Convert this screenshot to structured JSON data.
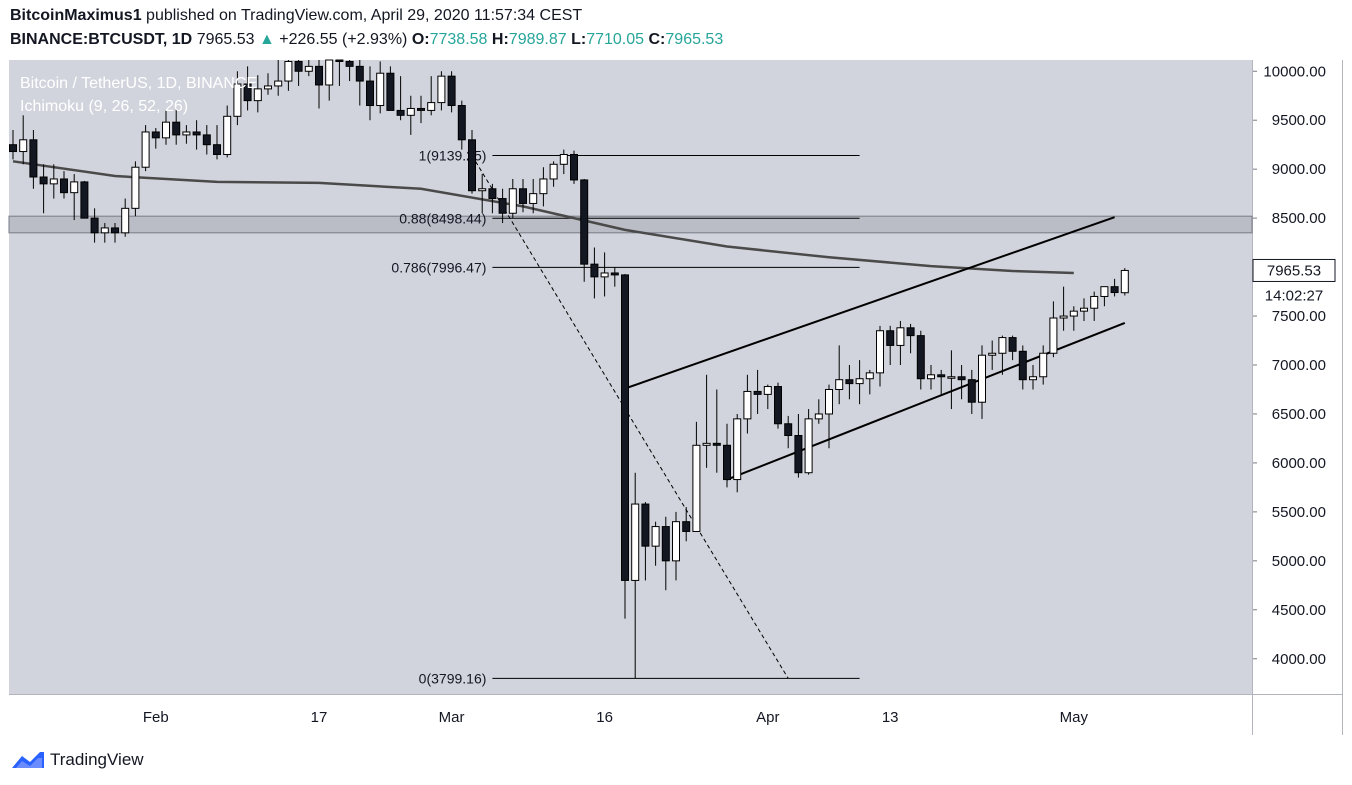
{
  "header": {
    "author": "BitcoinMaximus1",
    "published_text": "published on TradingView.com, April 29, 2020 11:57:34 CEST",
    "symbol": "BINANCE:BTCUSDT, 1D",
    "last": "7965.53",
    "arrow": "▲",
    "change": "+226.55 (+2.93%)",
    "o_label": "O:",
    "o_value": "7738.58",
    "h_label": "H:",
    "h_value": "7989.87",
    "l_label": "L:",
    "l_value": "7710.05",
    "c_label": "C:",
    "c_value": "7965.53"
  },
  "overlay": {
    "title": "Bitcoin / TetherUS, 1D, BINANCE",
    "indicator": "Ichimoku (9, 26, 52, 26)"
  },
  "branding": {
    "name": "TradingView"
  },
  "chart_data": {
    "type": "candlestick",
    "ylim": [
      3640,
      10115
    ],
    "y_ticks": [
      10000,
      9500,
      9000,
      8500,
      8000,
      7500,
      7000,
      6500,
      6000,
      5500,
      5000,
      4500,
      4000
    ],
    "y_tick_labels": [
      "10000.00",
      "9500.00",
      "9000.00",
      "8500.00",
      "8000.00",
      "7500.00",
      "7000.00",
      "6500.00",
      "6000.00",
      "5500.00",
      "5000.00",
      "4500.00",
      "4000.00"
    ],
    "x_ticks": [
      {
        "label": "Feb",
        "day": 14
      },
      {
        "label": "17",
        "day": 30
      },
      {
        "label": "Mar",
        "day": 43
      },
      {
        "label": "16",
        "day": 58
      },
      {
        "label": "Apr",
        "day": 74
      },
      {
        "label": "13",
        "day": 86
      },
      {
        "label": "May",
        "day": 104
      }
    ],
    "last_price": "7965.53",
    "countdown": "14:02:27",
    "candles": [
      [
        9250,
        9400,
        9100,
        9180
      ],
      [
        9180,
        9550,
        9050,
        9300
      ],
      [
        9300,
        9400,
        8800,
        8920
      ],
      [
        8920,
        9050,
        8550,
        8850
      ],
      [
        8850,
        9050,
        8700,
        8900
      ],
      [
        8900,
        8980,
        8700,
        8760
      ],
      [
        8760,
        8950,
        8480,
        8870
      ],
      [
        8870,
        8880,
        8500,
        8500
      ],
      [
        8500,
        8600,
        8250,
        8350
      ],
      [
        8350,
        8450,
        8250,
        8400
      ],
      [
        8400,
        8450,
        8250,
        8350
      ],
      [
        8350,
        8700,
        8310,
        8600
      ],
      [
        8600,
        9080,
        8520,
        9020
      ],
      [
        9020,
        9450,
        8980,
        9380
      ],
      [
        9380,
        9420,
        9210,
        9320
      ],
      [
        9320,
        9600,
        9250,
        9480
      ],
      [
        9480,
        9620,
        9250,
        9350
      ],
      [
        9350,
        9450,
        9260,
        9380
      ],
      [
        9380,
        9500,
        9200,
        9350
      ],
      [
        9350,
        9450,
        9150,
        9250
      ],
      [
        9250,
        9450,
        9100,
        9150
      ],
      [
        9150,
        9650,
        9120,
        9540
      ],
      [
        9540,
        10000,
        9450,
        9870
      ],
      [
        9870,
        10050,
        9600,
        9700
      ],
      [
        9700,
        9960,
        9580,
        9820
      ],
      [
        9820,
        9980,
        9760,
        9850
      ],
      [
        9850,
        10150,
        9750,
        9900
      ],
      [
        9900,
        10250,
        9800,
        10100
      ],
      [
        10100,
        10300,
        9850,
        10000
      ],
      [
        10000,
        10150,
        9950,
        10050
      ],
      [
        10050,
        10400,
        9620,
        9860
      ],
      [
        9860,
        10250,
        9700,
        10150
      ],
      [
        10150,
        10200,
        9850,
        10100
      ],
      [
        10100,
        10150,
        9900,
        10050
      ],
      [
        10050,
        10250,
        9650,
        9900
      ],
      [
        9900,
        10050,
        9500,
        9650
      ],
      [
        9650,
        10100,
        9570,
        9980
      ],
      [
        9980,
        10050,
        9600,
        9600
      ],
      [
        9600,
        9950,
        9500,
        9550
      ],
      [
        9550,
        9750,
        9350,
        9620
      ],
      [
        9620,
        9750,
        9470,
        9600
      ],
      [
        9600,
        9950,
        9550,
        9680
      ],
      [
        9680,
        10000,
        9600,
        9950
      ],
      [
        9950,
        10000,
        9580,
        9650
      ],
      [
        9650,
        9700,
        9200,
        9300
      ],
      [
        9300,
        9400,
        8750,
        8780
      ],
      [
        8780,
        8950,
        8550,
        8800
      ],
      [
        8800,
        8850,
        8550,
        8700
      ],
      [
        8700,
        8800,
        8450,
        8550
      ],
      [
        8550,
        8900,
        8500,
        8800
      ],
      [
        8800,
        8900,
        8560,
        8650
      ],
      [
        8650,
        8900,
        8550,
        8750
      ],
      [
        8750,
        9020,
        8620,
        8900
      ],
      [
        8900,
        9080,
        8820,
        9050
      ],
      [
        9050,
        9200,
        8950,
        9150
      ],
      [
        9150,
        9190,
        8850,
        8890
      ],
      [
        8890,
        8900,
        7850,
        8030
      ],
      [
        8030,
        8200,
        7680,
        7900
      ],
      [
        7900,
        8150,
        7700,
        7940
      ],
      [
        7940,
        8000,
        7800,
        7920
      ],
      [
        7920,
        7930,
        4410,
        4800
      ],
      [
        4800,
        5900,
        3799,
        5580
      ],
      [
        5580,
        5600,
        4800,
        5150
      ],
      [
        5150,
        5400,
        4950,
        5350
      ],
      [
        5350,
        5450,
        4700,
        5000
      ],
      [
        5000,
        5500,
        4800,
        5400
      ],
      [
        5400,
        5550,
        5200,
        5300
      ],
      [
        5300,
        6420,
        5300,
        6180
      ],
      [
        6180,
        6900,
        5950,
        6200
      ],
      [
        6200,
        6750,
        5900,
        6180
      ],
      [
        6180,
        6400,
        5750,
        5830
      ],
      [
        5830,
        6500,
        5700,
        6450
      ],
      [
        6450,
        6900,
        6300,
        6730
      ],
      [
        6730,
        6950,
        6500,
        6700
      ],
      [
        6700,
        6800,
        6550,
        6780
      ],
      [
        6780,
        6820,
        6350,
        6400
      ],
      [
        6400,
        6480,
        6150,
        6280
      ],
      [
        6280,
        6500,
        5850,
        5900
      ],
      [
        5900,
        6550,
        5880,
        6450
      ],
      [
        6450,
        6650,
        6400,
        6500
      ],
      [
        6500,
        6800,
        6150,
        6750
      ],
      [
        6750,
        7200,
        6600,
        6850
      ],
      [
        6850,
        7000,
        6650,
        6810
      ],
      [
        6810,
        7050,
        6600,
        6860
      ],
      [
        6860,
        6950,
        6700,
        6920
      ],
      [
        6920,
        7400,
        6780,
        7350
      ],
      [
        7350,
        7400,
        7000,
        7200
      ],
      [
        7200,
        7450,
        7000,
        7380
      ],
      [
        7380,
        7420,
        7120,
        7300
      ],
      [
        7300,
        7350,
        6750,
        6860
      ],
      [
        6860,
        7000,
        6750,
        6900
      ],
      [
        6900,
        6950,
        6700,
        6880
      ],
      [
        6880,
        7150,
        6550,
        6880
      ],
      [
        6880,
        7000,
        6650,
        6850
      ],
      [
        6850,
        6950,
        6500,
        6620
      ],
      [
        6620,
        7200,
        6450,
        7100
      ],
      [
        7100,
        7250,
        6950,
        7120
      ],
      [
        7120,
        7300,
        6900,
        7280
      ],
      [
        7280,
        7300,
        7050,
        7140
      ],
      [
        7140,
        7200,
        6750,
        6850
      ],
      [
        6850,
        7000,
        6750,
        6880
      ],
      [
        6880,
        7200,
        6800,
        7120
      ],
      [
        7120,
        7650,
        7080,
        7480
      ],
      [
        7480,
        7800,
        7350,
        7500
      ],
      [
        7500,
        7600,
        7350,
        7550
      ],
      [
        7550,
        7680,
        7450,
        7580
      ],
      [
        7580,
        7750,
        7450,
        7700
      ],
      [
        7700,
        7800,
        7600,
        7800
      ],
      [
        7800,
        7880,
        7700,
        7740
      ],
      [
        7738.58,
        7989.87,
        7710.05,
        7965.53
      ]
    ],
    "fib_levels": [
      {
        "label": "1(9139.25)",
        "value": 9139.25
      },
      {
        "label": "0.88(8498.44)",
        "value": 8498.44
      },
      {
        "label": "0.786(7996.47)",
        "value": 7996.47
      },
      {
        "label": "0(3799.16)",
        "value": 3799.16
      }
    ],
    "resistance_zone": [
      8350,
      8520
    ],
    "ma_curve": [
      [
        0,
        9080
      ],
      [
        10,
        8930
      ],
      [
        20,
        8870
      ],
      [
        30,
        8860
      ],
      [
        40,
        8800
      ],
      [
        50,
        8620
      ],
      [
        60,
        8380
      ],
      [
        70,
        8210
      ],
      [
        80,
        8100
      ],
      [
        90,
        8010
      ],
      [
        98,
        7960
      ],
      [
        104,
        7940
      ]
    ],
    "channel_upper": [
      [
        60,
        6760
      ],
      [
        108,
        8510
      ]
    ],
    "channel_lower": [
      [
        70,
        5830
      ],
      [
        109,
        7430
      ]
    ],
    "fib_diagonal": [
      [
        45,
        9139.25
      ],
      [
        76,
        3799.16
      ]
    ]
  }
}
